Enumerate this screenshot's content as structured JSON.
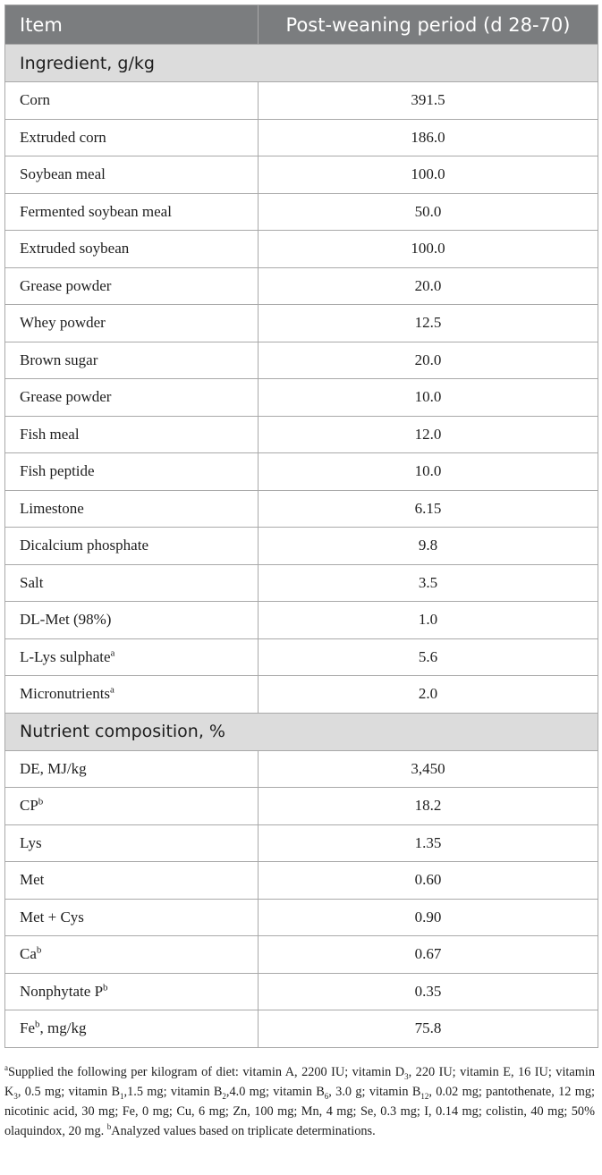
{
  "table": {
    "headers": [
      "Item",
      "Post-weaning period (d 28-70)"
    ],
    "sections": [
      {
        "title": "Ingredient, g/kg",
        "rows": [
          {
            "label": "Corn",
            "sup": "",
            "after": "",
            "value": "391.5"
          },
          {
            "label": "Extruded corn",
            "sup": "",
            "after": "",
            "value": "186.0"
          },
          {
            "label": "Soybean meal",
            "sup": "",
            "after": "",
            "value": "100.0"
          },
          {
            "label": "Fermented soybean meal",
            "sup": "",
            "after": "",
            "value": "50.0"
          },
          {
            "label": "Extruded soybean",
            "sup": "",
            "after": "",
            "value": "100.0"
          },
          {
            "label": "Grease powder",
            "sup": "",
            "after": "",
            "value": "20.0"
          },
          {
            "label": "Whey powder",
            "sup": "",
            "after": "",
            "value": "12.5"
          },
          {
            "label": "Brown sugar",
            "sup": "",
            "after": "",
            "value": "20.0"
          },
          {
            "label": "Grease powder",
            "sup": "",
            "after": "",
            "value": "10.0"
          },
          {
            "label": "Fish meal",
            "sup": "",
            "after": "",
            "value": "12.0"
          },
          {
            "label": "Fish peptide",
            "sup": "",
            "after": "",
            "value": "10.0"
          },
          {
            "label": "Limestone",
            "sup": "",
            "after": "",
            "value": "6.15"
          },
          {
            "label": "Dicalcium phosphate",
            "sup": "",
            "after": "",
            "value": "9.8"
          },
          {
            "label": "Salt",
            "sup": "",
            "after": "",
            "value": "3.5"
          },
          {
            "label": "DL-Met (98%)",
            "sup": "",
            "after": "",
            "value": "1.0"
          },
          {
            "label": "L-Lys sulphate",
            "sup": "a",
            "after": "",
            "value": "5.6"
          },
          {
            "label": "Micronutrients",
            "sup": "a",
            "after": "",
            "value": "2.0"
          }
        ]
      },
      {
        "title": "Nutrient composition, %",
        "rows": [
          {
            "label": "DE, MJ/kg",
            "sup": "",
            "after": "",
            "value": "3,450"
          },
          {
            "label": "CP",
            "sup": "b",
            "after": "",
            "value": "18.2"
          },
          {
            "label": "Lys",
            "sup": "",
            "after": "",
            "value": "1.35"
          },
          {
            "label": "Met",
            "sup": "",
            "after": "",
            "value": "0.60"
          },
          {
            "label": "Met + Cys",
            "sup": "",
            "after": "",
            "value": "0.90"
          },
          {
            "label": "Ca",
            "sup": "b",
            "after": "",
            "value": "0.67"
          },
          {
            "label": "Nonphytate P",
            "sup": "b",
            "after": "",
            "value": "0.35"
          },
          {
            "label": "Fe",
            "sup": "b",
            "after": ", mg/kg",
            "value": "75.8"
          }
        ]
      }
    ]
  },
  "footnote": [
    {
      "t": "sup",
      "v": "a"
    },
    {
      "t": "text",
      "v": "Supplied the following per kilogram of diet: vitamin A, 2200 IU; vitamin D"
    },
    {
      "t": "sub",
      "v": "3"
    },
    {
      "t": "text",
      "v": ", 220 IU; vitamin E, 16 IU; vitamin K"
    },
    {
      "t": "sub",
      "v": "3"
    },
    {
      "t": "text",
      "v": ", 0.5 mg; vitamin B"
    },
    {
      "t": "sub",
      "v": "1"
    },
    {
      "t": "text",
      "v": ",1.5 mg; vitamin B"
    },
    {
      "t": "sub",
      "v": "2"
    },
    {
      "t": "text",
      "v": ",4.0 mg; vitamin B"
    },
    {
      "t": "sub",
      "v": "6"
    },
    {
      "t": "text",
      "v": ", 3.0 g; vitamin B"
    },
    {
      "t": "sub",
      "v": "12"
    },
    {
      "t": "text",
      "v": ", 0.02 mg; pantothenate, 12 mg; nicotinic acid, 30 mg; Fe, 0 mg; Cu, 6 mg; Zn, 100 mg; Mn, 4 mg; Se, 0.3 mg; I, 0.14 mg; colistin, 40 mg; 50% olaquindox, 20 mg. "
    },
    {
      "t": "sup",
      "v": "b"
    },
    {
      "t": "text",
      "v": "Analyzed values based on triplicate determinations."
    }
  ]
}
